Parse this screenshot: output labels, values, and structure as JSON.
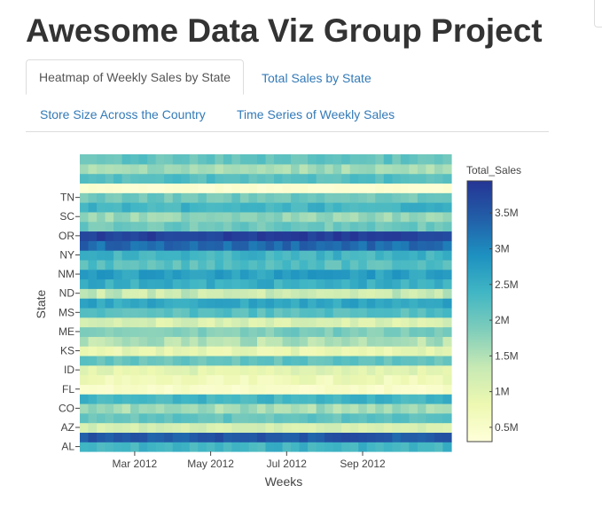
{
  "page_title": "Awesome Data Viz Group Project",
  "tabs": [
    {
      "label": "Heatmap of Weekly Sales by State",
      "active": true
    },
    {
      "label": "Total Sales by State",
      "active": false
    },
    {
      "label": "Store Size Across the Country",
      "active": false
    },
    {
      "label": "Time Series of Weekly Sales",
      "active": false
    }
  ],
  "chart_data": {
    "type": "heatmap",
    "xlabel": "Weeks",
    "ylabel": "State",
    "x_tick_labels": [
      "Mar 2012",
      "May 2012",
      "Jul 2012",
      "Sep 2012"
    ],
    "x_tick_weeks": [
      6.5,
      15.5,
      24.5,
      33.5
    ],
    "y_tick_labels": [
      "AL",
      "AZ",
      "CO",
      "FL",
      "ID",
      "KS",
      "ME",
      "MS",
      "ND",
      "NM",
      "NY",
      "OR",
      "SC",
      "TN"
    ],
    "n_weeks": 44,
    "colorbar": {
      "title": "Total_Sales",
      "range": [
        300000,
        3950000
      ],
      "tick_labels": [
        "0.5M",
        "1M",
        "1.5M",
        "2M",
        "2.5M",
        "3M",
        "3.5M"
      ],
      "tick_values": [
        500000,
        1000000,
        1500000,
        2000000,
        2500000,
        3000000,
        3500000
      ],
      "colorscale": [
        "#ffffd9",
        "#edf8b1",
        "#c7e9b4",
        "#7fcdbb",
        "#41b6c4",
        "#1d91c0",
        "#225ea8",
        "#253494"
      ]
    },
    "rows_bottom_to_top": [
      {
        "base": 2400000,
        "noise": 180000
      },
      {
        "base": 3500000,
        "noise": 200000
      },
      {
        "base": 1150000,
        "noise": 150000
      },
      {
        "base": 2100000,
        "noise": 180000
      },
      {
        "base": 1600000,
        "noise": 220000
      },
      {
        "base": 2400000,
        "noise": 180000
      },
      {
        "base": 500000,
        "noise": 120000
      },
      {
        "base": 750000,
        "noise": 200000
      },
      {
        "base": 1000000,
        "noise": 200000
      },
      {
        "base": 2100000,
        "noise": 180000
      },
      {
        "base": 900000,
        "noise": 180000
      },
      {
        "base": 1500000,
        "noise": 250000
      },
      {
        "base": 1900000,
        "noise": 200000
      },
      {
        "base": 1100000,
        "noise": 200000
      },
      {
        "base": 2200000,
        "noise": 180000
      },
      {
        "base": 2600000,
        "noise": 200000
      },
      {
        "base": 1300000,
        "noise": 250000
      },
      {
        "base": 2500000,
        "noise": 200000
      },
      {
        "base": 2700000,
        "noise": 200000
      },
      {
        "base": 2200000,
        "noise": 200000
      },
      {
        "base": 2400000,
        "noise": 200000
      },
      {
        "base": 3300000,
        "noise": 220000
      },
      {
        "base": 3800000,
        "noise": 150000
      },
      {
        "base": 2000000,
        "noise": 200000
      },
      {
        "base": 1700000,
        "noise": 200000
      },
      {
        "base": 2400000,
        "noise": 180000
      },
      {
        "base": 2000000,
        "noise": 180000
      },
      {
        "base": 400000,
        "noise": 60000
      },
      {
        "base": 2200000,
        "noise": 180000
      },
      {
        "base": 1600000,
        "noise": 200000
      },
      {
        "base": 2100000,
        "noise": 180000
      }
    ]
  }
}
